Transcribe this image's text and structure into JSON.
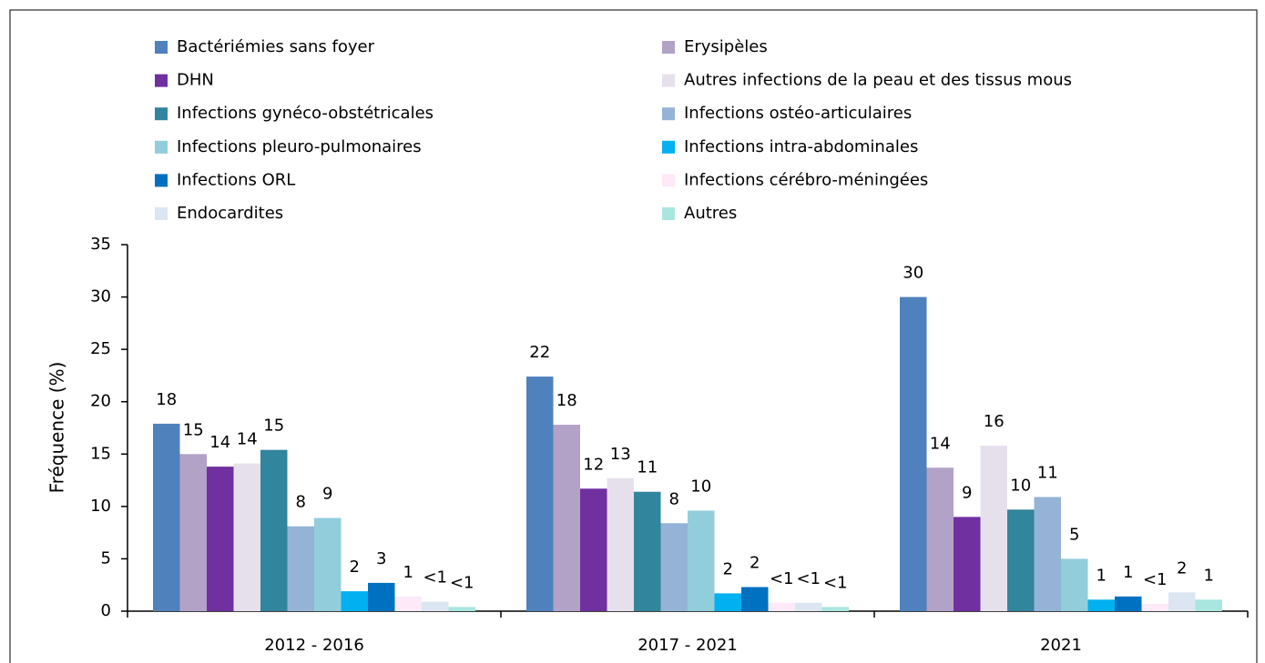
{
  "chart_data": {
    "type": "bar",
    "y_label": "Fréquence (%)",
    "categories": [
      "2012 - 2016",
      "2017 - 2021",
      "2021"
    ],
    "ylim": [
      0,
      35
    ],
    "yticks": [
      0,
      5,
      10,
      15,
      20,
      25,
      30,
      35
    ],
    "legend": "top",
    "series": [
      {
        "name": "Bactériémies sans foyer",
        "color": "#4f81bd",
        "values": [
          17.9,
          22.4,
          30.0
        ],
        "value_labels": [
          "18",
          "22",
          "30"
        ]
      },
      {
        "name": "Erysipèles",
        "color": "#b2a2c7",
        "values": [
          15.0,
          17.8,
          13.7
        ],
        "value_labels": [
          "15",
          "18",
          "14"
        ]
      },
      {
        "name": "DHN",
        "color": "#7030a0",
        "values": [
          13.8,
          11.7,
          9.0
        ],
        "value_labels": [
          "14",
          "12",
          "9"
        ]
      },
      {
        "name": "Autres infections de la peau et des tissus mous",
        "color": "#e6e0ec",
        "values": [
          14.1,
          12.7,
          15.8
        ],
        "value_labels": [
          "14",
          "13",
          "16"
        ]
      },
      {
        "name": "Infections gynéco-obstétricales",
        "color": "#31859c",
        "values": [
          15.4,
          11.4,
          9.7
        ],
        "value_labels": [
          "15",
          "11",
          "10"
        ]
      },
      {
        "name": "Infections ostéo-articulaires",
        "color": "#95b3d7",
        "values": [
          8.1,
          8.4,
          10.9
        ],
        "value_labels": [
          "8",
          "8",
          "11"
        ]
      },
      {
        "name": "Infections pleuro-pulmonaires",
        "color": "#92cddc",
        "values": [
          8.9,
          9.6,
          5.0
        ],
        "value_labels": [
          "9",
          "10",
          "5"
        ]
      },
      {
        "name": "Infections intra-abdominales",
        "color": "#00b0f0",
        "values": [
          1.9,
          1.7,
          1.1
        ],
        "value_labels": [
          "2",
          "2",
          "1"
        ]
      },
      {
        "name": "Infections ORL",
        "color": "#0070c0",
        "values": [
          2.7,
          2.3,
          1.4
        ],
        "value_labels": [
          "3",
          "2",
          "1"
        ]
      },
      {
        "name": "Infections cérébro-méningées",
        "color": "#fde9f7",
        "values": [
          1.4,
          0.8,
          0.7
        ],
        "value_labels": [
          "1",
          "<1",
          "<1"
        ]
      },
      {
        "name": "Endocardites",
        "color": "#dce6f2",
        "values": [
          0.9,
          0.8,
          1.8
        ],
        "value_labels": [
          "<1",
          "<1",
          "2"
        ]
      },
      {
        "name": "Autres",
        "color": "#a9e6e0",
        "values": [
          0.4,
          0.4,
          1.1
        ],
        "value_labels": [
          "<1",
          "<1",
          "1"
        ]
      }
    ]
  }
}
